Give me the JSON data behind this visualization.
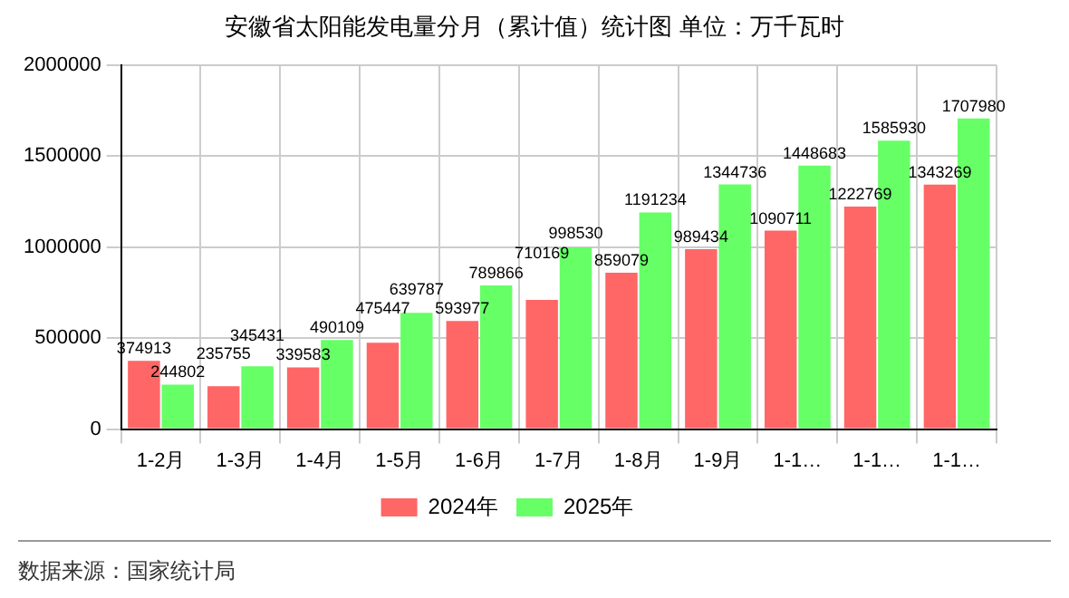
{
  "chart_data": {
    "type": "bar",
    "title": "安徽省太阳能发电量分月（累计值）统计图 单位：万千瓦时",
    "categories": [
      "1-2月",
      "1-3月",
      "1-4月",
      "1-5月",
      "1-6月",
      "1-7月",
      "1-8月",
      "1-9月",
      "1-1…",
      "1-1…",
      "1-1…"
    ],
    "series": [
      {
        "name": "2024年",
        "color": "#ff6666",
        "values": [
          374913,
          235755,
          339583,
          475447,
          593977,
          710169,
          859079,
          989434,
          1090711,
          1222769,
          1343269
        ]
      },
      {
        "name": "2025年",
        "color": "#66ff66",
        "values": [
          244802,
          345431,
          490109,
          639787,
          789866,
          998530,
          1191234,
          1344736,
          1448683,
          1585930,
          1707980
        ]
      }
    ],
    "ylim": [
      0,
      2000000
    ],
    "yticks": [
      0,
      500000,
      1000000,
      1500000,
      2000000
    ],
    "grid": true,
    "legend": "bottom",
    "data_labels": true,
    "annotations": [
      "数据来源：国家统计局"
    ]
  }
}
